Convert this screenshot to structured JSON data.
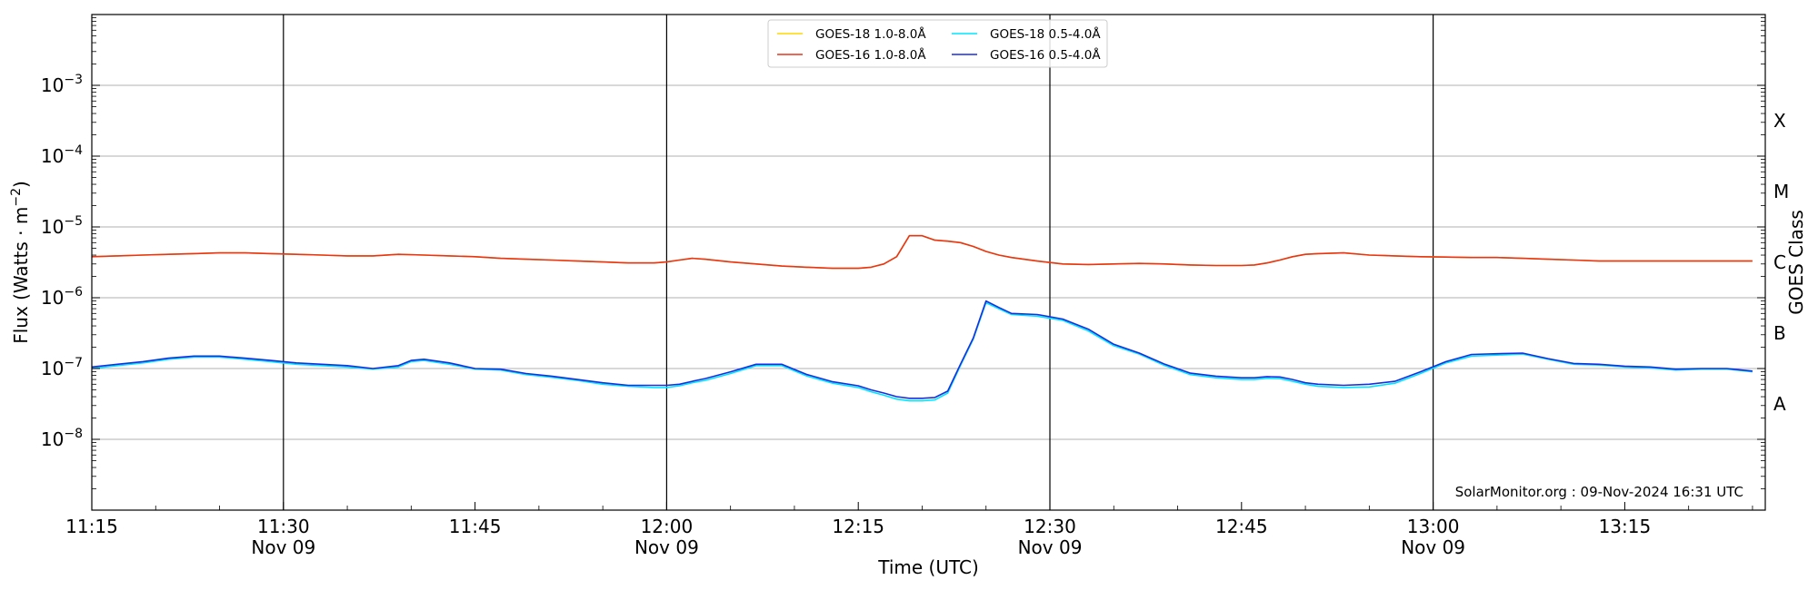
{
  "chart_data": {
    "type": "line",
    "xlabel": "Time (UTC)",
    "ylabel_main": "Flux (Watts · m",
    "ylabel_sup": "−2",
    "ylabel_close": ")",
    "right_label": "GOES Class",
    "credit": "SolarMonitor.org : 09-Nov-2024 16:31 UTC",
    "y_scale": "log",
    "ylim": [
      1e-09,
      0.01
    ],
    "xlim_minutes": [
      0,
      131
    ],
    "x_ticks": [
      {
        "t": 0,
        "label": "11:15",
        "date": ""
      },
      {
        "t": 15,
        "label": "11:30",
        "date": "Nov 09"
      },
      {
        "t": 30,
        "label": "11:45",
        "date": ""
      },
      {
        "t": 45,
        "label": "12:00",
        "date": "Nov 09"
      },
      {
        "t": 60,
        "label": "12:15",
        "date": ""
      },
      {
        "t": 75,
        "label": "12:30",
        "date": "Nov 09"
      },
      {
        "t": 90,
        "label": "12:45",
        "date": ""
      },
      {
        "t": 105,
        "label": "13:00",
        "date": "Nov 09"
      },
      {
        "t": 120,
        "label": "13:15",
        "date": ""
      }
    ],
    "vertical_lines_minutes": [
      15,
      45,
      75,
      105
    ],
    "y_ticks": [
      {
        "exp": -8,
        "label": "10",
        "sup": "−8"
      },
      {
        "exp": -7,
        "label": "10",
        "sup": "−7"
      },
      {
        "exp": -6,
        "label": "10",
        "sup": "−6"
      },
      {
        "exp": -5,
        "label": "10",
        "sup": "−5"
      },
      {
        "exp": -4,
        "label": "10",
        "sup": "−4"
      },
      {
        "exp": -3,
        "label": "10",
        "sup": "−3"
      }
    ],
    "goes_classes": [
      {
        "label": "A",
        "exp": -7.5
      },
      {
        "label": "B",
        "exp": -6.5
      },
      {
        "label": "C",
        "exp": -5.5
      },
      {
        "label": "M",
        "exp": -4.5
      },
      {
        "label": "X",
        "exp": -3.5
      }
    ],
    "grid": true,
    "legend_position": "top-center",
    "series": [
      {
        "name": "GOES-18 1.0-8.0Å",
        "color": "#ffd700",
        "x": [
          0,
          2,
          4,
          6,
          8,
          10,
          12,
          14,
          16,
          18,
          20,
          22,
          24,
          26,
          28,
          30,
          32,
          34,
          36,
          38,
          40,
          42,
          44,
          45,
          46,
          47,
          48,
          50,
          52,
          54,
          56,
          58,
          60,
          61,
          62,
          63,
          64,
          65,
          66,
          67,
          68,
          69,
          70,
          71,
          72,
          74,
          76,
          78,
          80,
          82,
          84,
          86,
          88,
          90,
          91,
          92,
          93,
          94,
          95,
          96,
          98,
          100,
          102,
          104,
          106,
          108,
          110,
          112,
          114,
          116,
          118,
          120,
          122,
          124,
          126,
          128,
          130
        ],
        "values": [
          3.8e-06,
          3.9e-06,
          4e-06,
          4.1e-06,
          4.2e-06,
          4.3e-06,
          4.3e-06,
          4.2e-06,
          4.1e-06,
          4e-06,
          3.9e-06,
          3.9e-06,
          4.1e-06,
          4e-06,
          3.9e-06,
          3.8e-06,
          3.6e-06,
          3.5e-06,
          3.4e-06,
          3.3e-06,
          3.2e-06,
          3.1e-06,
          3.1e-06,
          3.2e-06,
          3.4e-06,
          3.6e-06,
          3.5e-06,
          3.2e-06,
          3e-06,
          2.8e-06,
          2.7e-06,
          2.6e-06,
          2.6e-06,
          2.7e-06,
          3e-06,
          3.8e-06,
          7.5e-06,
          7.5e-06,
          6.5e-06,
          6.3e-06,
          6e-06,
          5.3e-06,
          4.5e-06,
          4e-06,
          3.7e-06,
          3.3e-06,
          3e-06,
          2.95e-06,
          3e-06,
          3.05e-06,
          3e-06,
          2.9e-06,
          2.85e-06,
          2.85e-06,
          2.9e-06,
          3.1e-06,
          3.4e-06,
          3.8e-06,
          4.1e-06,
          4.2e-06,
          4.3e-06,
          4e-06,
          3.9e-06,
          3.8e-06,
          3.75e-06,
          3.7e-06,
          3.7e-06,
          3.6e-06,
          3.5e-06,
          3.4e-06,
          3.3e-06,
          3.3e-06,
          3.3e-06,
          3.3e-06,
          3.3e-06,
          3.3e-06,
          3.3e-06
        ]
      },
      {
        "name": "GOES-16 1.0-8.0Å",
        "color": "#e8341c",
        "x": [
          0,
          2,
          4,
          6,
          8,
          10,
          12,
          14,
          16,
          18,
          20,
          22,
          24,
          26,
          28,
          30,
          32,
          34,
          36,
          38,
          40,
          42,
          44,
          45,
          46,
          47,
          48,
          50,
          52,
          54,
          56,
          58,
          60,
          61,
          62,
          63,
          64,
          65,
          66,
          67,
          68,
          69,
          70,
          71,
          72,
          74,
          76,
          78,
          80,
          82,
          84,
          86,
          88,
          90,
          91,
          92,
          93,
          94,
          95,
          96,
          98,
          100,
          102,
          104,
          106,
          108,
          110,
          112,
          114,
          116,
          118,
          120,
          122,
          124,
          126,
          128,
          130
        ],
        "values": [
          3.8e-06,
          3.9e-06,
          4e-06,
          4.1e-06,
          4.2e-06,
          4.3e-06,
          4.3e-06,
          4.2e-06,
          4.1e-06,
          4e-06,
          3.9e-06,
          3.9e-06,
          4.1e-06,
          4e-06,
          3.9e-06,
          3.8e-06,
          3.6e-06,
          3.5e-06,
          3.4e-06,
          3.3e-06,
          3.2e-06,
          3.1e-06,
          3.1e-06,
          3.2e-06,
          3.4e-06,
          3.6e-06,
          3.5e-06,
          3.2e-06,
          3e-06,
          2.8e-06,
          2.7e-06,
          2.6e-06,
          2.6e-06,
          2.7e-06,
          3e-06,
          3.8e-06,
          7.5e-06,
          7.5e-06,
          6.5e-06,
          6.3e-06,
          6e-06,
          5.3e-06,
          4.5e-06,
          4e-06,
          3.7e-06,
          3.3e-06,
          3e-06,
          2.95e-06,
          3e-06,
          3.05e-06,
          3e-06,
          2.9e-06,
          2.85e-06,
          2.85e-06,
          2.9e-06,
          3.1e-06,
          3.4e-06,
          3.8e-06,
          4.1e-06,
          4.2e-06,
          4.3e-06,
          4e-06,
          3.9e-06,
          3.8e-06,
          3.75e-06,
          3.7e-06,
          3.7e-06,
          3.6e-06,
          3.5e-06,
          3.4e-06,
          3.3e-06,
          3.3e-06,
          3.3e-06,
          3.3e-06,
          3.3e-06,
          3.3e-06,
          3.3e-06
        ]
      },
      {
        "name": "GOES-18 0.5-4.0Å",
        "color": "#00e5ff",
        "x": [
          0,
          2,
          4,
          6,
          8,
          10,
          12,
          14,
          16,
          18,
          20,
          22,
          24,
          25,
          26,
          28,
          30,
          32,
          34,
          36,
          38,
          40,
          42,
          44,
          45,
          46,
          47,
          48,
          50,
          52,
          54,
          56,
          58,
          60,
          61,
          62,
          63,
          64,
          65,
          66,
          67,
          68,
          69,
          70,
          71,
          72,
          74,
          76,
          78,
          80,
          82,
          84,
          86,
          88,
          90,
          91,
          92,
          93,
          94,
          95,
          96,
          98,
          100,
          102,
          104,
          106,
          108,
          110,
          112,
          114,
          116,
          118,
          120,
          122,
          124,
          126,
          128,
          130
        ],
        "values": [
          1e-07,
          1.1e-07,
          1.2e-07,
          1.35e-07,
          1.45e-07,
          1.45e-07,
          1.35e-07,
          1.25e-07,
          1.15e-07,
          1.1e-07,
          1.05e-07,
          9.8e-08,
          1.05e-07,
          1.25e-07,
          1.3e-07,
          1.15e-07,
          9.8e-08,
          9.5e-08,
          8.2e-08,
          7.5e-08,
          6.8e-08,
          6e-08,
          5.6e-08,
          5.4e-08,
          5.4e-08,
          5.7e-08,
          6.3e-08,
          6.8e-08,
          8.5e-08,
          1.1e-07,
          1.1e-07,
          7.8e-08,
          6.2e-08,
          5.4e-08,
          4.7e-08,
          4.2e-08,
          3.7e-08,
          3.5e-08,
          3.5e-08,
          3.6e-08,
          4.5e-08,
          1.1e-07,
          2.6e-07,
          8.5e-07,
          7e-07,
          5.8e-07,
          5.5e-07,
          4.8e-07,
          3.4e-07,
          2.1e-07,
          1.6e-07,
          1.1e-07,
          8.2e-08,
          7.4e-08,
          7e-08,
          7e-08,
          7.3e-08,
          7.2e-08,
          6.6e-08,
          6e-08,
          5.6e-08,
          5.4e-08,
          5.5e-08,
          6.2e-08,
          8.5e-08,
          1.2e-07,
          1.5e-07,
          1.55e-07,
          1.6e-07,
          1.35e-07,
          1.15e-07,
          1.12e-07,
          1.05e-07,
          1.02e-07,
          9.5e-08,
          9.8e-08,
          9.8e-08,
          9e-08
        ]
      },
      {
        "name": "GOES-16 0.5-4.0Å",
        "color": "#1a2ee0",
        "x": [
          0,
          2,
          4,
          6,
          8,
          10,
          12,
          14,
          16,
          18,
          20,
          22,
          24,
          25,
          26,
          28,
          30,
          32,
          34,
          36,
          38,
          40,
          42,
          44,
          45,
          46,
          47,
          48,
          50,
          52,
          54,
          56,
          58,
          60,
          61,
          62,
          63,
          64,
          65,
          66,
          67,
          68,
          69,
          70,
          71,
          72,
          74,
          76,
          78,
          80,
          82,
          84,
          86,
          88,
          90,
          91,
          92,
          93,
          94,
          95,
          96,
          98,
          100,
          102,
          104,
          106,
          108,
          110,
          112,
          114,
          116,
          118,
          120,
          122,
          124,
          126,
          128,
          130
        ],
        "values": [
          1.05e-07,
          1.15e-07,
          1.25e-07,
          1.4e-07,
          1.5e-07,
          1.5e-07,
          1.4e-07,
          1.3e-07,
          1.2e-07,
          1.15e-07,
          1.1e-07,
          1e-07,
          1.1e-07,
          1.3e-07,
          1.35e-07,
          1.2e-07,
          1e-07,
          9.8e-08,
          8.5e-08,
          7.8e-08,
          7e-08,
          6.3e-08,
          5.8e-08,
          5.8e-08,
          5.8e-08,
          6e-08,
          6.6e-08,
          7.2e-08,
          9e-08,
          1.15e-07,
          1.15e-07,
          8.2e-08,
          6.5e-08,
          5.7e-08,
          5e-08,
          4.5e-08,
          4e-08,
          3.8e-08,
          3.8e-08,
          3.9e-08,
          4.8e-08,
          1.15e-07,
          2.7e-07,
          9e-07,
          7.3e-07,
          6e-07,
          5.8e-07,
          5e-07,
          3.6e-07,
          2.2e-07,
          1.65e-07,
          1.15e-07,
          8.6e-08,
          7.8e-08,
          7.4e-08,
          7.4e-08,
          7.7e-08,
          7.6e-08,
          7e-08,
          6.3e-08,
          6e-08,
          5.8e-08,
          6e-08,
          6.6e-08,
          9e-08,
          1.25e-07,
          1.58e-07,
          1.62e-07,
          1.65e-07,
          1.38e-07,
          1.18e-07,
          1.15e-07,
          1.08e-07,
          1.05e-07,
          9.8e-08,
          1e-07,
          1e-07,
          9.2e-08
        ]
      }
    ]
  }
}
